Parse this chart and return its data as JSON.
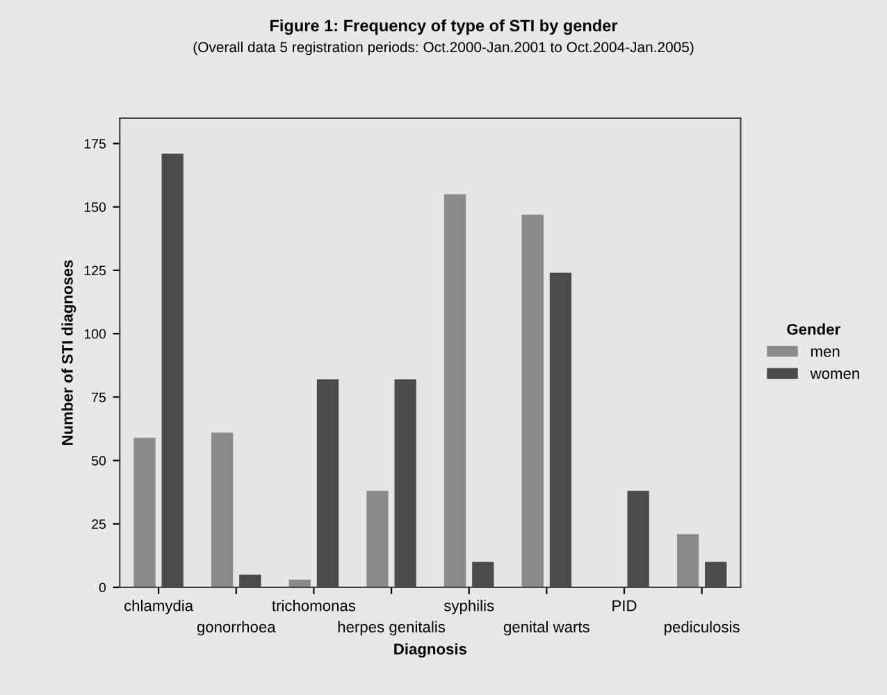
{
  "chart_data": {
    "type": "bar",
    "title": "Figure 1: Frequency of type of STI by gender",
    "subtitle": "(Overall data 5 registration periods: Oct.2000-Jan.2001 to Oct.2004-Jan.2005)",
    "xlabel": "Diagnosis",
    "ylabel": "Number of STI diagnoses",
    "legend_title": "Gender",
    "categories": [
      "chlamydia",
      "gonorrhoea",
      "trichomonas",
      "herpes genitalis",
      "syphilis",
      "genital warts",
      "PID",
      "pediculosis"
    ],
    "series": [
      {
        "name": "men",
        "color": "#8a8a8a",
        "values": [
          59,
          61,
          3,
          38,
          155,
          147,
          0,
          21
        ]
      },
      {
        "name": "women",
        "color": "#4a4a4a",
        "values": [
          171,
          5,
          82,
          82,
          10,
          124,
          38,
          10
        ]
      }
    ],
    "ylim": [
      0,
      185
    ],
    "yticks": [
      0,
      25,
      50,
      75,
      100,
      125,
      150,
      175
    ],
    "grid": false,
    "legend": "right"
  }
}
